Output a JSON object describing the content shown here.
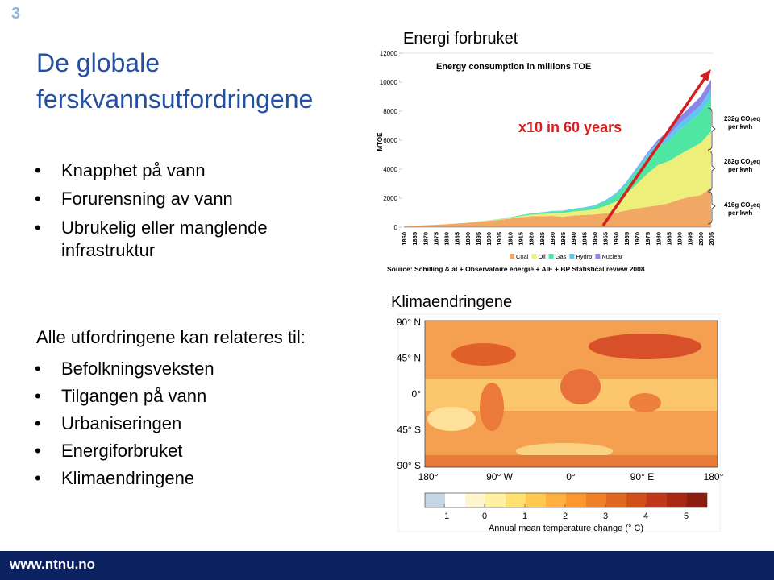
{
  "slide_number": "3",
  "title_lines": [
    "De globale",
    "ferskvannsutfordringene"
  ],
  "bullets_top": [
    "Knapphet på vann",
    "Forurensning av vann",
    "Ubrukelig eller manglende infrastruktur"
  ],
  "intro": "Alle utfordringene kan relateres til:",
  "bullets_bottom": [
    "Befolkningsveksten",
    "Tilgangen på vann",
    "Urbaniseringen",
    "Energiforbruket",
    "Klimaendringene"
  ],
  "footer": "www.ntnu.no",
  "energy_chart": {
    "type": "area",
    "heading": "Energi forbruket",
    "title": "Energy consumption in millions TOE",
    "y_label": "MTOE",
    "annotation": "x10 in 60 years",
    "source": "Source: Schilling & al + Observatoire énergie + AIE + BP Statistical review 2008",
    "categories": [
      "1860",
      "1865",
      "1870",
      "1875",
      "1880",
      "1885",
      "1890",
      "1895",
      "1900",
      "1905",
      "1910",
      "1915",
      "1920",
      "1925",
      "1930",
      "1935",
      "1940",
      "1945",
      "1950",
      "1955",
      "1960",
      "1965",
      "1970",
      "1975",
      "1980",
      "1985",
      "1990",
      "1995",
      "2000",
      "2005"
    ],
    "series": [
      {
        "name": "Coal",
        "color": "#f2a865",
        "values": [
          80,
          100,
          130,
          160,
          200,
          250,
          300,
          370,
          440,
          510,
          590,
          680,
          750,
          760,
          780,
          720,
          800,
          840,
          880,
          950,
          1000,
          1150,
          1300,
          1400,
          1500,
          1650,
          1900,
          2100,
          2200,
          2700
        ]
      },
      {
        "name": "Oil",
        "color": "#eeee7a",
        "values": [
          0,
          0,
          0,
          0,
          0,
          5,
          10,
          15,
          20,
          30,
          50,
          80,
          110,
          150,
          200,
          250,
          280,
          300,
          350,
          500,
          750,
          1150,
          1700,
          2300,
          2800,
          2900,
          3100,
          3300,
          3600,
          3900
        ]
      },
      {
        "name": "Gas",
        "color": "#4fe6a4",
        "values": [
          0,
          0,
          0,
          0,
          0,
          0,
          5,
          10,
          15,
          20,
          30,
          50,
          70,
          90,
          110,
          130,
          150,
          170,
          200,
          300,
          450,
          650,
          900,
          1100,
          1250,
          1400,
          1700,
          1900,
          2100,
          2400
        ]
      },
      {
        "name": "Hydro",
        "color": "#62c4f2",
        "values": [
          0,
          0,
          0,
          0,
          0,
          0,
          0,
          0,
          0,
          5,
          10,
          15,
          20,
          25,
          30,
          40,
          50,
          60,
          80,
          100,
          130,
          170,
          220,
          280,
          330,
          380,
          430,
          470,
          520,
          560
        ]
      },
      {
        "name": "Nuclear",
        "color": "#8c86e6",
        "values": [
          0,
          0,
          0,
          0,
          0,
          0,
          0,
          0,
          0,
          0,
          0,
          0,
          0,
          0,
          0,
          0,
          0,
          0,
          0,
          0,
          0,
          5,
          20,
          80,
          170,
          330,
          450,
          520,
          580,
          620
        ]
      }
    ],
    "ylim": [
      0,
      12000
    ],
    "yticks": [
      0,
      2000,
      4000,
      6000,
      8000,
      10000,
      12000
    ],
    "emissions": [
      {
        "value": "232g CO",
        "sub": "2",
        "suffix": "eq",
        "line2": "per kwh"
      },
      {
        "value": "282g CO",
        "sub": "2",
        "suffix": "eq",
        "line2": "per kwh"
      },
      {
        "value": "416g CO",
        "sub": "2",
        "suffix": "eq",
        "line2": "per kwh"
      }
    ]
  },
  "climate": {
    "heading": "Klimaendringene",
    "lat_labels": [
      "90° N",
      "45° N",
      "0°",
      "45° S",
      "90° S"
    ],
    "lon_labels": [
      "180°",
      "90° W",
      "0°",
      "90° E",
      "180°"
    ],
    "colorbar_ticks": [
      {
        "value": -1,
        "label": "−1"
      },
      0,
      1,
      2,
      3,
      4,
      5
    ],
    "colorbar_label": "Annual mean temperature change (° C)"
  }
}
